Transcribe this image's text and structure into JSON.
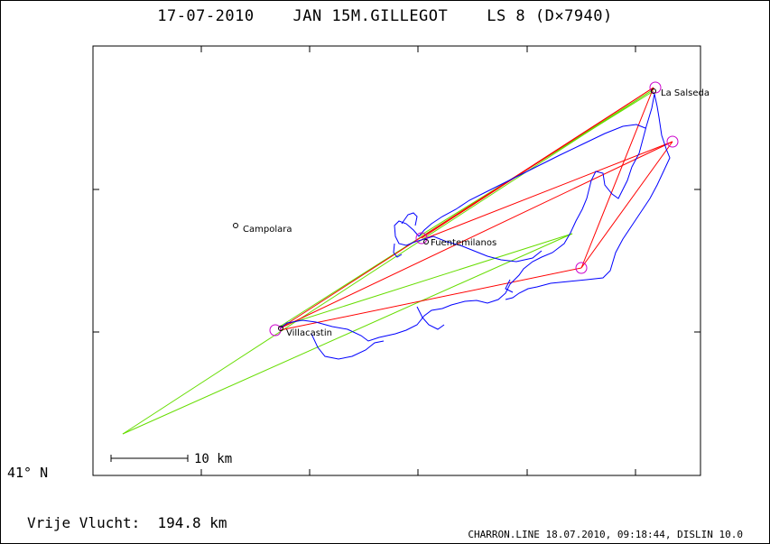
{
  "header": {
    "title": "17-07-2010    JAN 15M.GILLEGOT    LS 8 (D×7940)"
  },
  "axes": {
    "lat_label": "41° N"
  },
  "places": [
    {
      "name": "La Salseda"
    },
    {
      "name": "Campolara"
    },
    {
      "name": "Fuentemilanos"
    },
    {
      "name": "Villacastin"
    }
  ],
  "scale_bar": {
    "label": "10 km"
  },
  "summary": {
    "free_flight": "Vrije Vlucht:  194.8 km"
  },
  "footer": {
    "credit": "CHARRON.LINE 18.07.2010, 09:18:44, DISLIN 10.0"
  },
  "colors": {
    "track": "#0000ff",
    "legs_red": "#ff0000",
    "legs_green": "#66dd00",
    "turnpoint": "#cc00cc",
    "frame": "#000000"
  }
}
